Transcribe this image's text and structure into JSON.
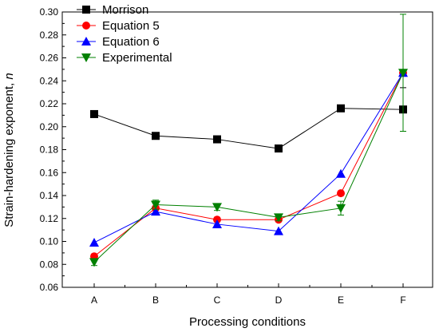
{
  "chart_data": {
    "type": "line",
    "categories": [
      "A",
      "B",
      "C",
      "D",
      "E",
      "F"
    ],
    "xlabel": "Processing conditions",
    "ylabel_main": "Strain-hardening exponent, ",
    "ylabel_symbol": "n",
    "ylim": [
      0.06,
      0.3
    ],
    "yticks": [
      "0.06",
      "0.08",
      "0.10",
      "0.12",
      "0.14",
      "0.16",
      "0.18",
      "0.20",
      "0.22",
      "0.24",
      "0.26",
      "0.28",
      "0.30"
    ],
    "grid": false,
    "legend_position": "top-left",
    "series": [
      {
        "name": "Morrison",
        "color": "#000000",
        "marker": "square",
        "values": [
          0.211,
          0.192,
          0.189,
          0.181,
          0.216,
          0.215
        ],
        "errors": [
          0,
          0,
          0,
          0,
          0,
          0.019
        ]
      },
      {
        "name": "Equation 5",
        "color": "#ff0000",
        "marker": "circle",
        "values": [
          0.087,
          0.129,
          0.119,
          0.119,
          0.142,
          0.247
        ],
        "errors": [
          0,
          0,
          0,
          0,
          0,
          0
        ]
      },
      {
        "name": "Equation 6",
        "color": "#0000ff",
        "marker": "triangle-up",
        "values": [
          0.099,
          0.126,
          0.115,
          0.109,
          0.159,
          0.247
        ],
        "errors": [
          0,
          0,
          0,
          0,
          0,
          0
        ]
      },
      {
        "name": "Experimental",
        "color": "#008000",
        "marker": "triangle-down",
        "values": [
          0.082,
          0.132,
          0.13,
          0.121,
          0.129,
          0.247
        ],
        "errors": [
          0.003,
          0.004,
          0.003,
          0.003,
          0.006,
          0.051
        ]
      }
    ]
  }
}
